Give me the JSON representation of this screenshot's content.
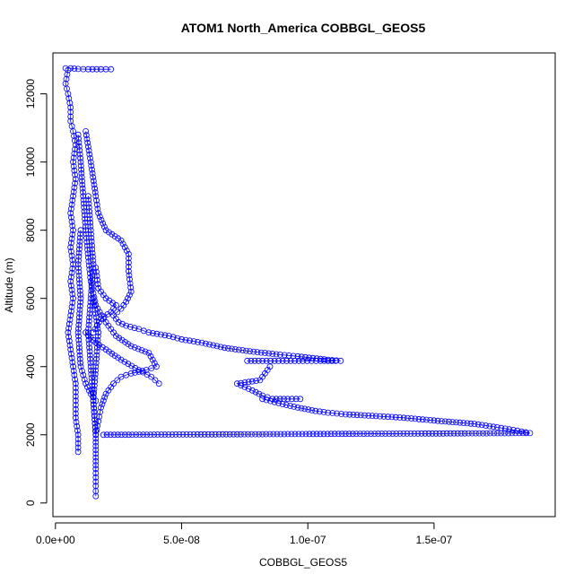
{
  "chart_data": {
    "type": "scatter",
    "title": "ATOM1 North_America COBBGL_GEOS5",
    "xlabel": "COBBGL_GEOS5",
    "ylabel": "Altitude (m)",
    "xlim": [
      -1e-09,
      1.98e-07
    ],
    "ylim": [
      -400,
      13200
    ],
    "x_ticks": [
      0,
      5e-08,
      1e-07,
      1.5e-07
    ],
    "x_tick_labels": [
      "0.0e+00",
      "5.0e-08",
      "1.0e-07",
      "1.5e-07"
    ],
    "y_ticks": [
      0,
      2000,
      4000,
      6000,
      8000,
      10000,
      12000
    ],
    "y_tick_labels": [
      "0",
      "2000",
      "4000",
      "6000",
      "8000",
      "10000",
      "12000"
    ],
    "grid": false,
    "marker": "open-circle",
    "line_style": "solid-thin",
    "series": [
      {
        "color": "#0000ff",
        "segments": [
          [
            [
              4e-09,
              12750
            ],
            [
              6e-09,
              12750
            ],
            [
              9e-09,
              12730
            ],
            [
              1.3e-08,
              12720
            ],
            [
              1.8e-08,
              12720
            ],
            [
              2.2e-08,
              12720
            ]
          ],
          [
            [
              5e-09,
              12700
            ],
            [
              4e-09,
              12300
            ],
            [
              5e-09,
              12000
            ],
            [
              6e-09,
              11600
            ],
            [
              6e-09,
              11200
            ],
            [
              7e-09,
              10900
            ],
            [
              8e-09,
              10500
            ],
            [
              7e-09,
              10000
            ],
            [
              8e-09,
              9500
            ],
            [
              7e-09,
              9000
            ],
            [
              6e-09,
              8500
            ],
            [
              7e-09,
              8000
            ],
            [
              6e-09,
              7500
            ],
            [
              7e-09,
              7000
            ],
            [
              6e-09,
              6500
            ],
            [
              7e-09,
              6000
            ],
            [
              6e-09,
              5500
            ],
            [
              5e-09,
              5000
            ],
            [
              6e-09,
              4500
            ],
            [
              7e-09,
              4000
            ],
            [
              8e-09,
              3500
            ],
            [
              8e-09,
              3000
            ],
            [
              8e-09,
              2500
            ],
            [
              9e-09,
              2000
            ],
            [
              9e-09,
              1500
            ]
          ],
          [
            [
              1.2e-08,
              10900
            ],
            [
              1.4e-08,
              10000
            ],
            [
              1.6e-08,
              9000
            ],
            [
              1.7e-08,
              8500
            ],
            [
              2e-08,
              8000
            ],
            [
              2.6e-08,
              7700
            ],
            [
              2.9e-08,
              7300
            ],
            [
              2.9e-08,
              6800
            ],
            [
              3e-08,
              6200
            ],
            [
              2.8e-08,
              5900
            ],
            [
              2.6e-08,
              5700
            ],
            [
              2.3e-08,
              5500
            ],
            [
              2.5e-08,
              5300
            ],
            [
              2.8e-08,
              5200
            ],
            [
              3.3e-08,
              5100
            ],
            [
              3.7e-08,
              5000
            ],
            [
              4.5e-08,
              4900
            ],
            [
              5e-08,
              4800
            ],
            [
              5.8e-08,
              4700
            ],
            [
              6.7e-08,
              4550
            ],
            [
              7.7e-08,
              4450
            ],
            [
              8.9e-08,
              4350
            ],
            [
              9.6e-08,
              4300
            ],
            [
              1.02e-07,
              4250
            ],
            [
              1.08e-07,
              4200
            ],
            [
              1.13e-07,
              4170
            ]
          ],
          [
            [
              7.6e-08,
              4170
            ],
            [
              8.2e-08,
              4170
            ],
            [
              9e-08,
              4170
            ],
            [
              9.8e-08,
              4170
            ],
            [
              1.05e-07,
              4170
            ],
            [
              1.11e-07,
              4170
            ]
          ],
          [
            [
              8.5e-08,
              4000
            ],
            [
              8.3e-08,
              3800
            ],
            [
              8.1e-08,
              3600
            ],
            [
              7.2e-08,
              3500
            ],
            [
              7.5e-08,
              3400
            ],
            [
              7.8e-08,
              3300
            ],
            [
              8.2e-08,
              3150
            ],
            [
              8.6e-08,
              3050
            ],
            [
              9.2e-08,
              3050
            ],
            [
              9.7e-08,
              3050
            ]
          ],
          [
            [
              8.2e-08,
              3050
            ],
            [
              9e-08,
              2900
            ],
            [
              9.6e-08,
              2800
            ],
            [
              1.03e-07,
              2700
            ],
            [
              1.08e-07,
              2650
            ],
            [
              1.15e-07,
              2600
            ],
            [
              1.27e-07,
              2550
            ],
            [
              1.38e-07,
              2500
            ],
            [
              1.53e-07,
              2400
            ],
            [
              1.66e-07,
              2320
            ],
            [
              1.75e-07,
              2220
            ],
            [
              1.83e-07,
              2120
            ],
            [
              1.88e-07,
              2050
            ],
            [
              1.9e-08,
              2000
            ]
          ],
          [
            [
              9e-09,
              10800
            ],
            [
              1e-08,
              10000
            ],
            [
              1.1e-08,
              9000
            ],
            [
              1.2e-08,
              8000
            ],
            [
              1.3e-08,
              7200
            ],
            [
              1.4e-08,
              6500
            ],
            [
              1.6e-08,
              5800
            ],
            [
              1.9e-08,
              5400
            ],
            [
              2.4e-08,
              4900
            ],
            [
              3e-08,
              4600
            ],
            [
              3.7e-08,
              4400
            ],
            [
              4e-08,
              4000
            ],
            [
              3.6e-08,
              3900
            ],
            [
              3e-08,
              3800
            ],
            [
              2.6e-08,
              3700
            ],
            [
              2.3e-08,
              3500
            ],
            [
              2e-08,
              3200
            ],
            [
              1.8e-08,
              2800
            ],
            [
              1.7e-08,
              2400
            ],
            [
              1.6e-08,
              2000
            ]
          ],
          [
            [
              1.2e-08,
              5000
            ],
            [
              1.6e-08,
              4700
            ],
            [
              2e-08,
              4500
            ],
            [
              2.6e-08,
              4200
            ],
            [
              3.3e-08,
              3900
            ],
            [
              3.8e-08,
              3700
            ],
            [
              4.1e-08,
              3500
            ]
          ],
          [
            [
              1.6e-08,
              6900
            ],
            [
              1.7e-08,
              6300
            ],
            [
              2e-08,
              6000
            ],
            [
              2.4e-08,
              5800
            ],
            [
              2.2e-08,
              5600
            ],
            [
              1.8e-08,
              5400
            ],
            [
              1.5e-08,
              5000
            ]
          ],
          [
            [
              1.5e-08,
              6000
            ],
            [
              1.7e-08,
              5000
            ],
            [
              1.6e-08,
              4000
            ],
            [
              1.5e-08,
              3000
            ],
            [
              1.6e-08,
              2000
            ],
            [
              1.6e-08,
              1000
            ],
            [
              1.6e-08,
              500
            ],
            [
              1.6e-08,
              200
            ]
          ],
          [
            [
              1.3e-08,
              9000
            ],
            [
              1.4e-08,
              8000
            ],
            [
              1.5e-08,
              7000
            ],
            [
              1.4e-08,
              6000
            ],
            [
              1.3e-08,
              5000
            ],
            [
              1.4e-08,
              4000
            ],
            [
              1.5e-08,
              3000
            ],
            [
              1.6e-08,
              2000
            ]
          ],
          [
            [
              1e-08,
              8000
            ],
            [
              9e-09,
              7000
            ],
            [
              1e-08,
              6000
            ],
            [
              9e-09,
              5000
            ],
            [
              1e-08,
              4000
            ],
            [
              1.2e-08,
              3500
            ],
            [
              1.4e-08,
              3200
            ],
            [
              1.6e-08,
              3000
            ]
          ]
        ]
      }
    ]
  }
}
